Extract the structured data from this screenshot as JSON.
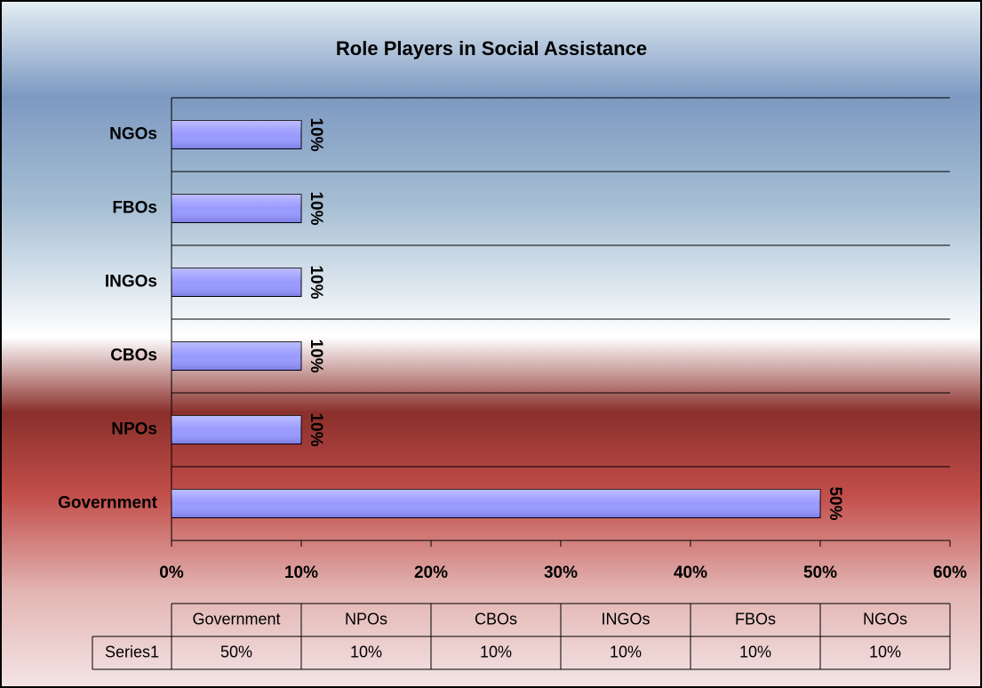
{
  "chart_data": {
    "type": "bar",
    "orientation": "horizontal",
    "title": "Role Players in Social Assistance",
    "categories": [
      "Government",
      "NPOs",
      "CBOs",
      "INGOs",
      "FBOs",
      "NGOs"
    ],
    "series": [
      {
        "name": "Series1",
        "color": "#9999ff",
        "values": [
          50,
          10,
          10,
          10,
          10,
          10
        ],
        "value_labels": [
          "50%",
          "10%",
          "10%",
          "10%",
          "10%",
          "10%"
        ]
      }
    ],
    "xlim": [
      0,
      60
    ],
    "xticks": [
      {
        "value": 0,
        "label": "0%"
      },
      {
        "value": 10,
        "label": "10%"
      },
      {
        "value": 20,
        "label": "20%"
      },
      {
        "value": 30,
        "label": "30%"
      },
      {
        "value": 40,
        "label": "40%"
      },
      {
        "value": 50,
        "label": "50%"
      },
      {
        "value": 60,
        "label": "60%"
      }
    ],
    "data_table": true
  }
}
